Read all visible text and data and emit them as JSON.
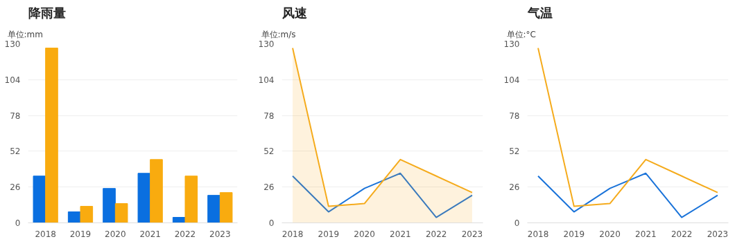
{
  "chart_data": [
    {
      "type": "bar",
      "title": "降雨量",
      "ylabel": "单位:mm",
      "categories": [
        "2018",
        "2019",
        "2020",
        "2021",
        "2022",
        "2023"
      ],
      "ylim": [
        0,
        130
      ],
      "yticks": [
        0,
        26,
        52,
        78,
        104,
        130
      ],
      "grid": "y",
      "series": [
        {
          "color": "#0a6fe0",
          "values": [
            34,
            8,
            25,
            36,
            4,
            20
          ]
        },
        {
          "color": "#f9ab0f",
          "values": [
            127,
            12,
            14,
            46,
            34,
            22
          ]
        }
      ]
    },
    {
      "type": "line",
      "title": "风速",
      "ylabel": "单位:m/s",
      "categories": [
        "2018",
        "2019",
        "2020",
        "2021",
        "2022",
        "2023"
      ],
      "ylim": [
        0,
        130
      ],
      "yticks": [
        0,
        26,
        52,
        78,
        104,
        130
      ],
      "grid": "y",
      "series": [
        {
          "color": "#1a73d9",
          "values": [
            34,
            8,
            25,
            36,
            4,
            20
          ]
        },
        {
          "type": "area",
          "color": "#f5ab1c",
          "values": [
            127,
            12,
            14,
            46,
            34,
            22
          ]
        }
      ]
    },
    {
      "type": "line",
      "title": "气温",
      "ylabel": "单位:°C",
      "categories": [
        "2018",
        "2019",
        "2020",
        "2021",
        "2022",
        "2023"
      ],
      "ylim": [
        0,
        130
      ],
      "yticks": [
        0,
        26,
        52,
        78,
        104,
        130
      ],
      "grid": "y",
      "series": [
        {
          "color": "#1a73d9",
          "values": [
            34,
            8,
            25,
            36,
            4,
            20
          ]
        },
        {
          "color": "#f5ab1c",
          "values": [
            127,
            12,
            14,
            46,
            34,
            22
          ]
        }
      ]
    }
  ]
}
